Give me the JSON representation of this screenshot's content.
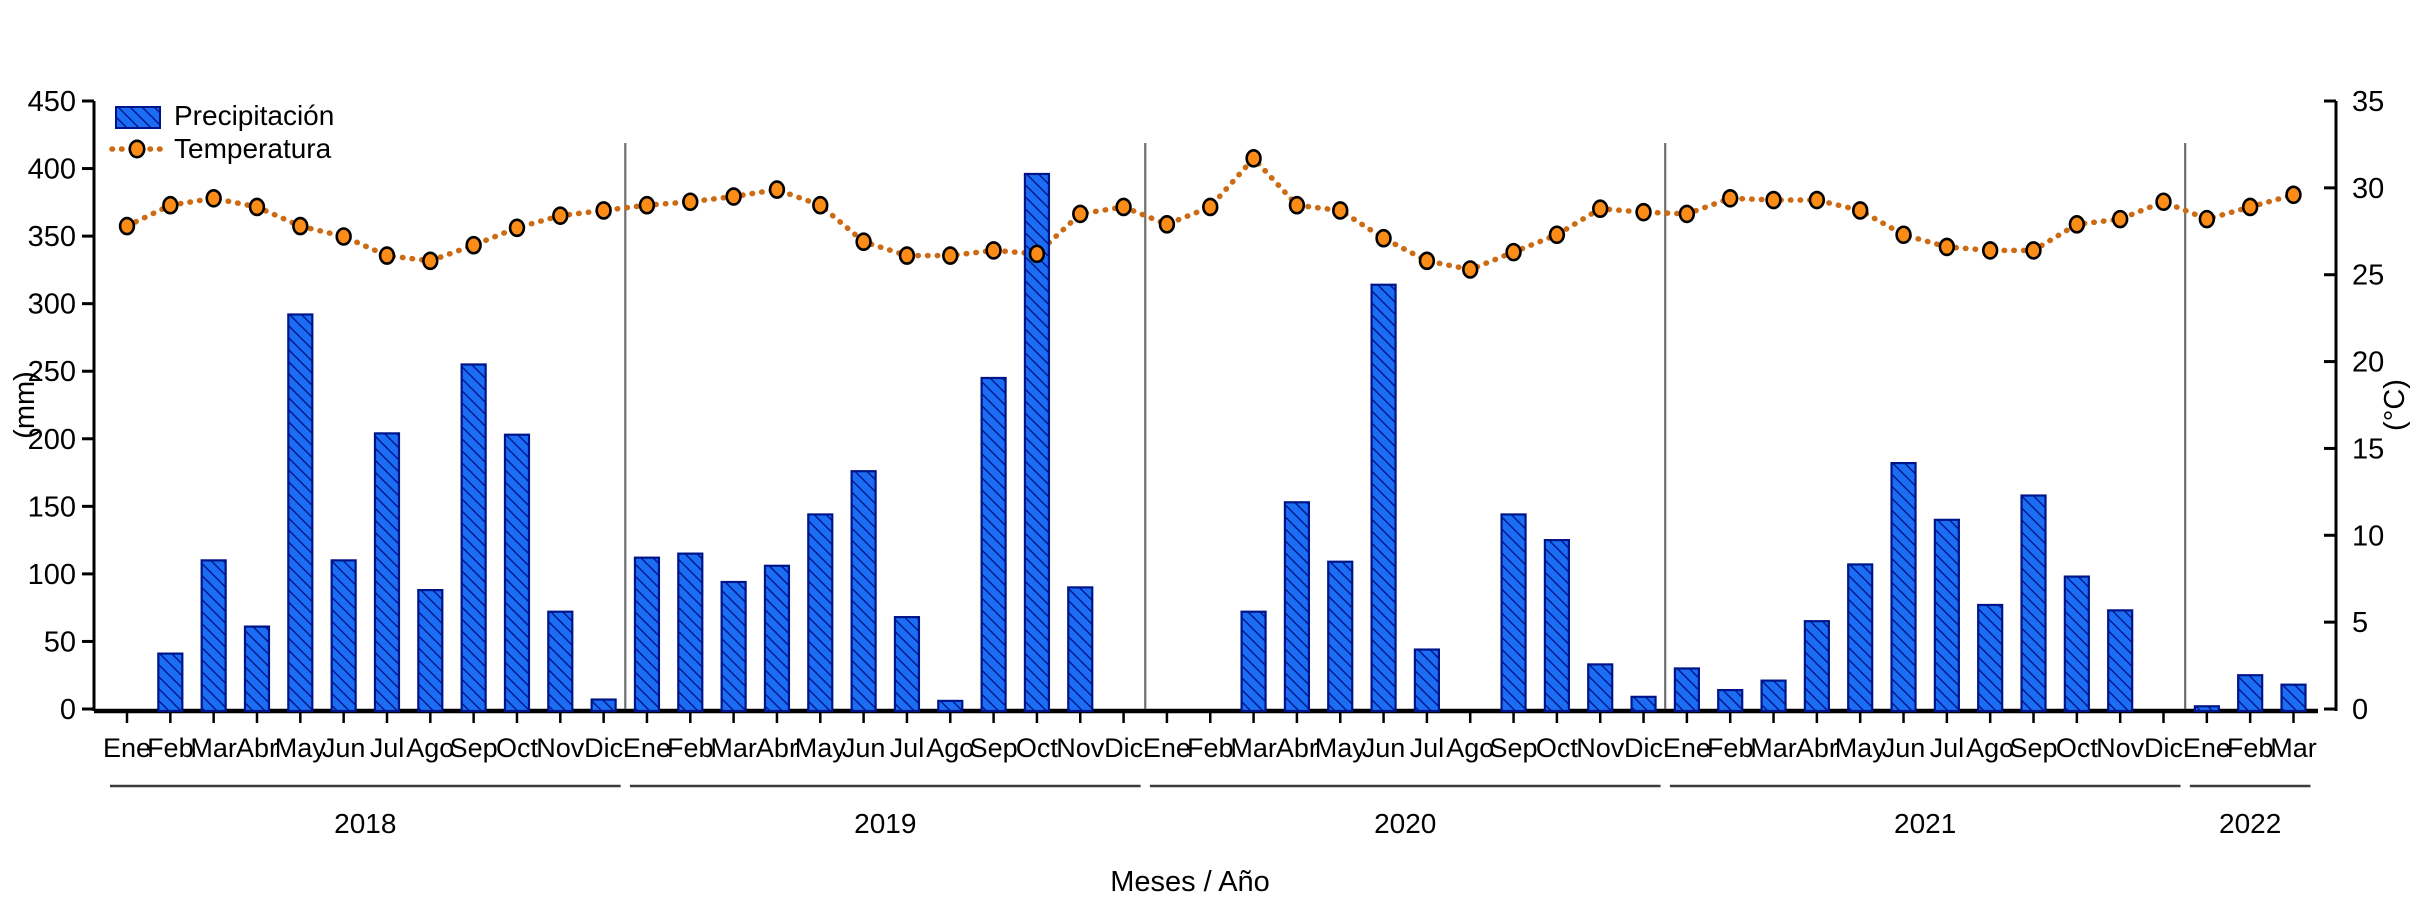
{
  "chart_data": {
    "type": "bar",
    "title": "",
    "xlabel": "Meses / Año",
    "ylabel_left": "(mm)",
    "ylabel_right": "(°C)",
    "ylim_left": [
      0,
      450
    ],
    "ylim_right": [
      0,
      35
    ],
    "yticks_left": [
      0,
      50,
      100,
      150,
      200,
      250,
      300,
      350,
      400,
      450
    ],
    "yticks_right": [
      0,
      5,
      10,
      15,
      20,
      25,
      30,
      35
    ],
    "grid": false,
    "legend_position": "top-left",
    "series": [
      {
        "name": "Precipitación",
        "type": "bar",
        "axis": "left"
      },
      {
        "name": "Temperatura",
        "type": "line",
        "axis": "right"
      }
    ],
    "colors": {
      "bar_fill": "#1b6ef3",
      "bar_hatch": "#001489",
      "bar_border": "#001489",
      "marker_fill": "#fa8c17",
      "marker_border": "#000000",
      "dotted_line": "#cc6b14",
      "divider": "#6e6e6e",
      "year_rule": "#3c3c3c"
    },
    "years": [
      {
        "year": "2018",
        "months": [
          "Ene",
          "Feb",
          "Mar",
          "Abr",
          "May",
          "Jun",
          "Jul",
          "Ago",
          "Sep",
          "Oct",
          "Nov",
          "Dic"
        ],
        "precipitation_mm": [
          0,
          41,
          110,
          61,
          292,
          110,
          204,
          88,
          255,
          203,
          72,
          7
        ],
        "temperature_c": [
          27.8,
          29.0,
          29.4,
          28.9,
          27.8,
          27.2,
          26.1,
          25.8,
          26.7,
          27.7,
          28.4,
          28.7
        ]
      },
      {
        "year": "2019",
        "months": [
          "Ene",
          "Feb",
          "Mar",
          "Abr",
          "May",
          "Jun",
          "Jul",
          "Ago",
          "Sep",
          "Oct",
          "Nov",
          "Dic"
        ],
        "precipitation_mm": [
          112,
          115,
          94,
          106,
          144,
          176,
          68,
          6,
          245,
          396,
          90,
          0
        ],
        "temperature_c": [
          29.0,
          29.2,
          29.5,
          29.9,
          29.0,
          26.9,
          26.1,
          26.1,
          26.4,
          26.2,
          28.5,
          28.9
        ]
      },
      {
        "year": "2020",
        "months": [
          "Ene",
          "Feb",
          "Mar",
          "Abr",
          "May",
          "Jun",
          "Jul",
          "Ago",
          "Sep",
          "Oct",
          "Nov",
          "Dic"
        ],
        "precipitation_mm": [
          0,
          0,
          72,
          153,
          109,
          314,
          44,
          0,
          144,
          125,
          33,
          9
        ],
        "temperature_c": [
          27.9,
          28.9,
          31.7,
          29.0,
          28.7,
          27.1,
          25.8,
          25.3,
          26.3,
          27.3,
          28.8,
          28.6
        ]
      },
      {
        "year": "2021",
        "months": [
          "Ene",
          "Feb",
          "Mar",
          "Abr",
          "May",
          "Jun",
          "Jul",
          "Ago",
          "Sep",
          "Oct",
          "Nov",
          "Dic"
        ],
        "precipitation_mm": [
          30,
          14,
          21,
          65,
          107,
          182,
          140,
          77,
          158,
          98,
          73,
          0
        ],
        "temperature_c": [
          28.5,
          29.4,
          29.3,
          29.3,
          28.7,
          27.3,
          26.6,
          26.4,
          26.4,
          27.9,
          28.2,
          29.2
        ]
      },
      {
        "year": "2022",
        "months": [
          "Ene",
          "Feb",
          "Mar"
        ],
        "precipitation_mm": [
          2,
          25,
          18
        ],
        "temperature_c": [
          28.2,
          28.9,
          29.6
        ]
      }
    ]
  }
}
